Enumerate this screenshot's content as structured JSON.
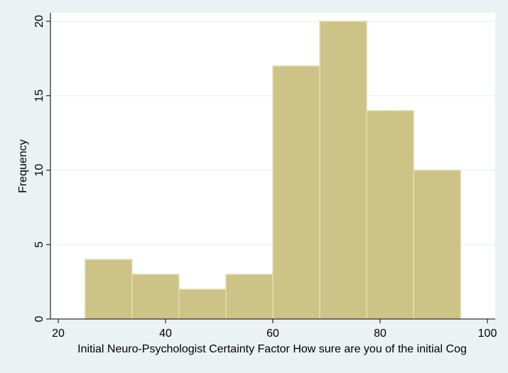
{
  "chart_data": {
    "type": "bar",
    "subtype": "histogram",
    "xlabel": "Initial Neuro-Psychologist Certainty Factor  How sure are you of the initial Cog",
    "ylabel": "Frequency",
    "xlim": [
      20,
      100
    ],
    "ylim": [
      0,
      20
    ],
    "xticks": [
      20,
      40,
      60,
      80,
      100
    ],
    "yticks": [
      0,
      5,
      10,
      15,
      20
    ],
    "bins": [
      {
        "start": 25.0,
        "end": 33.75,
        "count": 4
      },
      {
        "start": 33.75,
        "end": 42.5,
        "count": 3
      },
      {
        "start": 42.5,
        "end": 51.25,
        "count": 2
      },
      {
        "start": 51.25,
        "end": 60.0,
        "count": 3
      },
      {
        "start": 60.0,
        "end": 68.75,
        "count": 17
      },
      {
        "start": 68.75,
        "end": 77.5,
        "count": 20
      },
      {
        "start": 77.5,
        "end": 86.25,
        "count": 14
      },
      {
        "start": 86.25,
        "end": 95.0,
        "count": 10
      }
    ],
    "grid": true,
    "colors": {
      "background": "#eaf2f3",
      "plot_area": "#ffffff",
      "bar_fill": "#cdc387",
      "bar_stroke": "#e3dcb4",
      "grid": "#e4ecee",
      "axis": "#000000"
    }
  }
}
